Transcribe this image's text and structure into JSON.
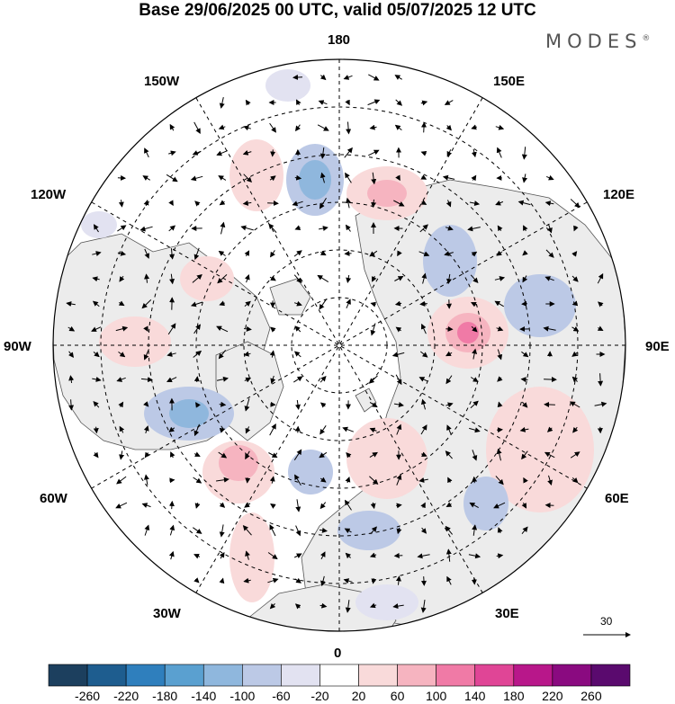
{
  "title": "Base 29/06/2025 00 UTC, valid 05/07/2025 12 UTC",
  "brand": "MODES",
  "brand_mark": "®",
  "longitude_labels": {
    "top": "180",
    "bottom": "0",
    "left": "90W",
    "right": "90E",
    "upper_left_1": "150W",
    "upper_left_2": "120W",
    "upper_right_1": "150E",
    "upper_right_2": "120E",
    "lower_left_1": "60W",
    "lower_left_2": "30W",
    "lower_right_1": "60E",
    "lower_right_2": "30E"
  },
  "reference_vector": {
    "value": "30"
  },
  "colorbar": {
    "colors": [
      "#1c3f5e",
      "#1e5d8f",
      "#2f7fbd",
      "#5aa0d0",
      "#8fb7dd",
      "#bcc9e6",
      "#e2e2f1",
      "#ffffff",
      "#f9dada",
      "#f6b4c0",
      "#f07aa6",
      "#e04596",
      "#b8178a",
      "#8a0a80",
      "#5a0a6e"
    ],
    "tick_labels": [
      "-260",
      "-220",
      "-180",
      "-140",
      "-100",
      "-60",
      "-20",
      "20",
      "60",
      "100",
      "140",
      "180",
      "220",
      "260"
    ]
  },
  "map": {
    "projection": "north-polar-stereographic",
    "land_color": "#ececec",
    "ocean_color": "#ffffff",
    "grid": true
  }
}
